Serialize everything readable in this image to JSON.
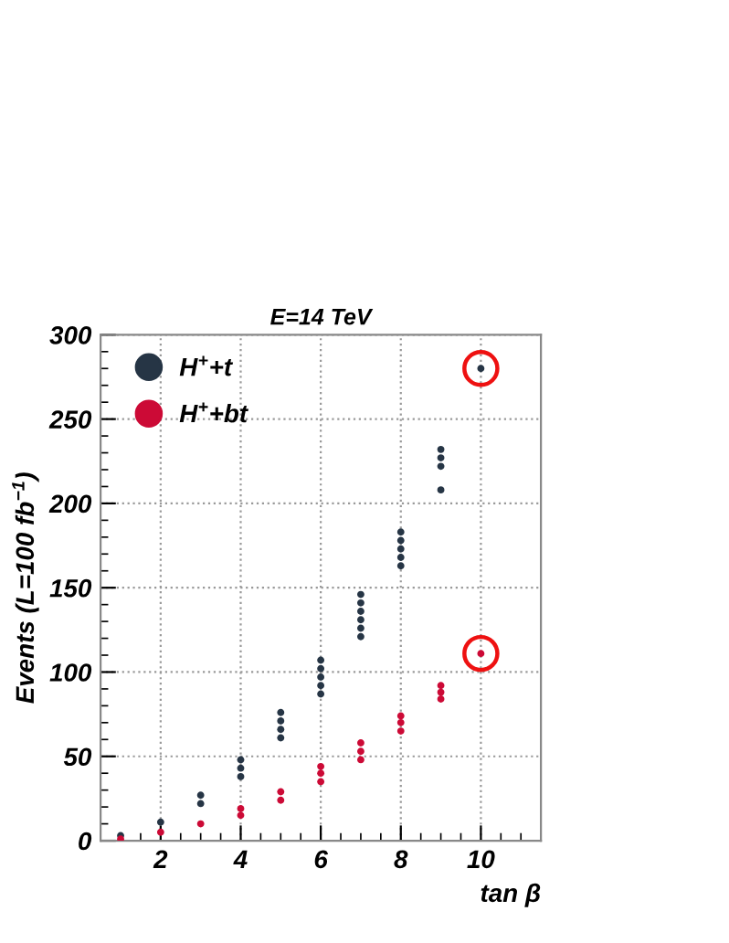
{
  "chart_data": {
    "type": "scatter",
    "title": "E=14 TeV",
    "xlabel": "tan β",
    "ylabel": "Events (L=100 fb$^{−1}$)",
    "xlim": [
      0.5,
      11.5
    ],
    "xticks": [
      2,
      4,
      6,
      8,
      10
    ],
    "ylim": [
      0,
      300
    ],
    "yticks": [
      0,
      50,
      100,
      150,
      200,
      250,
      300
    ],
    "grid": true,
    "legend": "top left",
    "marker": "circle",
    "series": [
      {
        "name": "H$^{+}$+t",
        "color": "#263545",
        "x": [
          1,
          2,
          3,
          3,
          4,
          4,
          4,
          5,
          5,
          5,
          5,
          6,
          6,
          6,
          6,
          6,
          7,
          7,
          7,
          7,
          7,
          7,
          8,
          8,
          8,
          8,
          8,
          9,
          9,
          9,
          9,
          10
        ],
        "values": [
          3,
          11,
          22,
          27,
          38,
          43,
          48,
          61,
          66,
          71,
          76,
          87,
          92,
          97,
          102,
          107,
          121,
          126,
          131,
          136,
          141,
          146,
          163,
          168,
          173,
          178,
          183,
          208,
          222,
          227,
          232,
          280
        ]
      },
      {
        "name": "H$^{+}$+bt",
        "color": "#cc0a36",
        "x": [
          1,
          2,
          3,
          4,
          4,
          5,
          5,
          6,
          6,
          6,
          7,
          7,
          7,
          8,
          8,
          8,
          9,
          9,
          9,
          10
        ],
        "values": [
          1,
          5,
          10,
          15,
          19,
          24,
          29,
          35,
          40,
          44,
          48,
          53,
          58,
          65,
          70,
          74,
          84,
          88,
          92,
          111
        ]
      }
    ]
  }
}
